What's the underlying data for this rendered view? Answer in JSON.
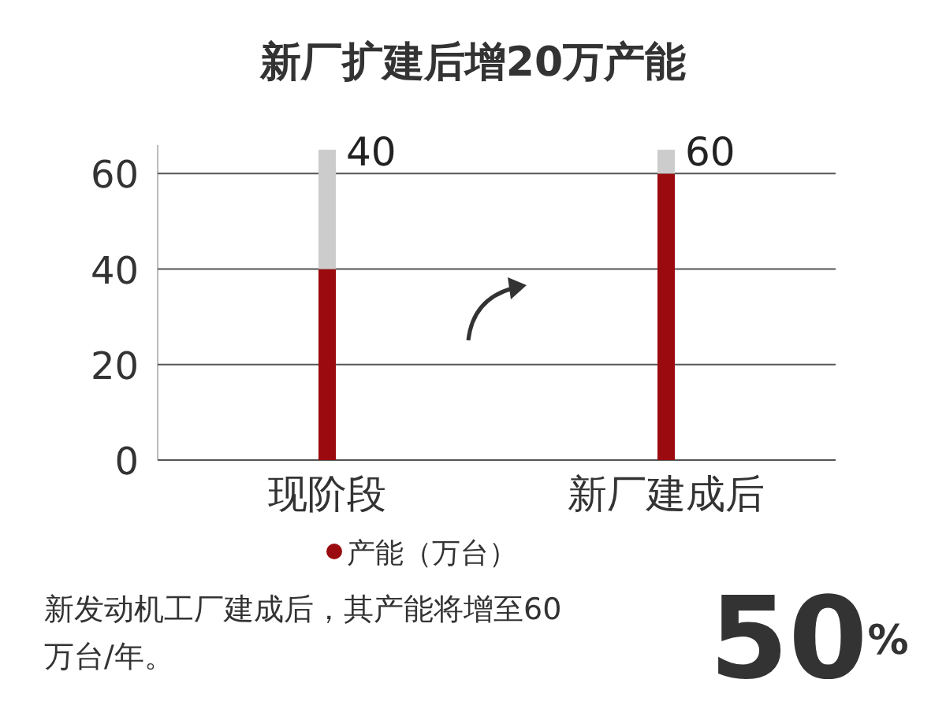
{
  "chart_data": {
    "type": "bar",
    "title": "新厂扩建后增20万产能",
    "categories": [
      "现阶段",
      "新厂建成后"
    ],
    "stacked": true,
    "series": [
      {
        "name": "产能（万台）",
        "color": "#9b0a0e",
        "values": [
          40,
          60
        ],
        "value_labels": [
          "40",
          "60"
        ]
      },
      {
        "color": "#cccccc",
        "values": [
          25,
          5
        ]
      }
    ],
    "ylim": [
      0,
      66
    ],
    "yticks": [
      0,
      20,
      40,
      60
    ],
    "grid": "y",
    "legend": "bottom",
    "annotations": [
      "新发动机工厂建成后，其产能将增至60万台/年。",
      "50$^{%}$"
    ]
  }
}
